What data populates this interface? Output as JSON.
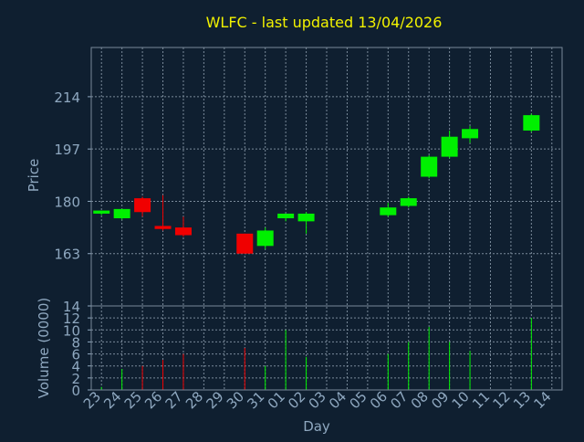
{
  "colors": {
    "background": "#0f1f30",
    "title": "#f2f200",
    "axis_text": "#8fa8c0",
    "up": "#00f000",
    "down": "#f00000",
    "grid": "#7a8a9a"
  },
  "chart_data": {
    "type": "candlestick",
    "title": "WLFC - last updated 13/04/2026",
    "xlabel": "Day",
    "price_panel": {
      "ylabel": "Price",
      "ylim": [
        146,
        230
      ],
      "yticks": [
        163,
        180,
        197,
        214
      ],
      "grid": true
    },
    "volume_panel": {
      "ylabel": "Volume (0000)",
      "ylim": [
        0,
        14
      ],
      "yticks": [
        0,
        2,
        4,
        6,
        8,
        10,
        12,
        14
      ],
      "grid": true
    },
    "x_tick_labels": [
      "23",
      "24",
      "25",
      "26",
      "27",
      "28",
      "29",
      "30",
      "31",
      "01",
      "02",
      "03",
      "04",
      "05",
      "06",
      "07",
      "08",
      "09",
      "10",
      "11",
      "12",
      "13",
      "14"
    ],
    "candles": [
      {
        "day": "23",
        "open": 176.0,
        "high": 177.0,
        "low": 175.5,
        "close": 177.0,
        "volume": 0.5
      },
      {
        "day": "24",
        "open": 174.5,
        "high": 177.5,
        "low": 174.0,
        "close": 177.5,
        "volume": 3.5
      },
      {
        "day": "25",
        "open": 181.0,
        "high": 181.5,
        "low": 175.0,
        "close": 176.5,
        "volume": 4.0
      },
      {
        "day": "26",
        "open": 172.0,
        "high": 182.0,
        "low": 170.5,
        "close": 171.0,
        "volume": 5.0
      },
      {
        "day": "27",
        "open": 171.5,
        "high": 175.0,
        "low": 168.5,
        "close": 169.0,
        "volume": 6.0
      },
      {
        "day": "30",
        "open": 169.5,
        "high": 169.5,
        "low": 163.0,
        "close": 163.0,
        "volume": 7.0
      },
      {
        "day": "31",
        "open": 165.5,
        "high": 171.5,
        "low": 164.5,
        "close": 170.5,
        "volume": 4.0
      },
      {
        "day": "01",
        "open": 174.5,
        "high": 176.0,
        "low": 173.5,
        "close": 176.0,
        "volume": 10.0
      },
      {
        "day": "02",
        "open": 173.5,
        "high": 176.5,
        "low": 169.5,
        "close": 176.0,
        "volume": 5.5
      },
      {
        "day": "06",
        "open": 175.5,
        "high": 179.5,
        "low": 175.0,
        "close": 178.0,
        "volume": 6.0
      },
      {
        "day": "07",
        "open": 178.5,
        "high": 181.5,
        "low": 178.0,
        "close": 181.0,
        "volume": 8.0
      },
      {
        "day": "08",
        "open": 188.0,
        "high": 195.0,
        "low": 187.5,
        "close": 194.5,
        "volume": 10.5
      },
      {
        "day": "09",
        "open": 194.5,
        "high": 203.0,
        "low": 194.0,
        "close": 201.0,
        "volume": 8.0
      },
      {
        "day": "10",
        "open": 200.5,
        "high": 204.5,
        "low": 199.0,
        "close": 203.5,
        "volume": 6.5
      },
      {
        "day": "13",
        "open": 203.0,
        "high": 208.5,
        "low": 202.5,
        "close": 208.0,
        "volume": 12.0
      }
    ]
  }
}
